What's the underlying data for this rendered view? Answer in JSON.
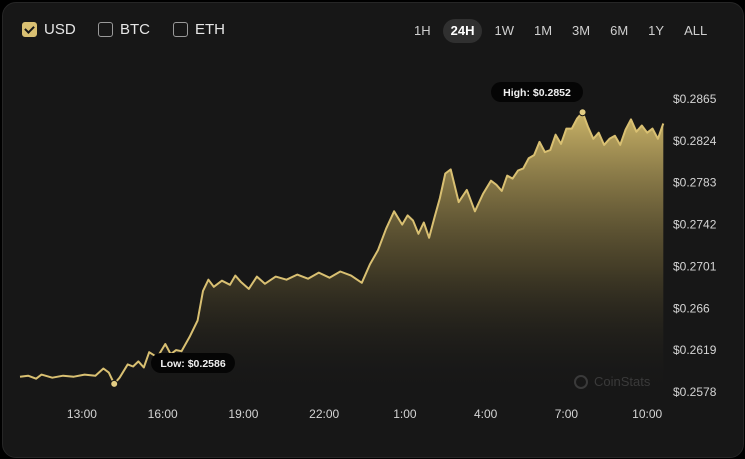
{
  "currencies": [
    {
      "label": "USD",
      "checked": true
    },
    {
      "label": "BTC",
      "checked": false
    },
    {
      "label": "ETH",
      "checked": false
    }
  ],
  "ranges": [
    "1H",
    "24H",
    "1W",
    "1M",
    "3M",
    "6M",
    "1Y",
    "ALL"
  ],
  "selected_range": "24H",
  "watermark": "CoinStats",
  "colors": {
    "line": "#d9c072",
    "fill_top": "#cbb468",
    "background": "#171717"
  },
  "chart_data": {
    "type": "area",
    "y_ticks": [
      "$0.2865",
      "$0.2824",
      "$0.2783",
      "$0.2742",
      "$0.2701",
      "$0.266",
      "$0.2619",
      "$0.2578"
    ],
    "x_ticks": [
      "13:00",
      "16:00",
      "19:00",
      "22:00",
      "1:00",
      "4:00",
      "7:00",
      "10:00"
    ],
    "ylim": [
      0.2578,
      0.2865
    ],
    "annotations": {
      "high": {
        "label": "High: $0.2852",
        "value": 0.2852
      },
      "low": {
        "label": "Low: $0.2586",
        "value": 0.2586
      }
    },
    "x_hours": [
      0,
      0.3,
      0.6,
      0.8,
      1.2,
      1.6,
      2.0,
      2.4,
      2.8,
      3.1,
      3.3,
      3.5,
      3.7,
      4.0,
      4.2,
      4.4,
      4.6,
      4.8,
      5.1,
      5.4,
      5.6,
      5.8,
      6.0,
      6.3,
      6.6,
      6.8,
      7.0,
      7.2,
      7.5,
      7.8,
      8.0,
      8.2,
      8.5,
      8.8,
      9.1,
      9.5,
      9.9,
      10.3,
      10.7,
      11.1,
      11.5,
      11.9,
      12.3,
      12.7,
      13.0,
      13.3,
      13.6,
      13.9,
      14.2,
      14.4,
      14.6,
      14.8,
      15.0,
      15.2,
      15.4,
      15.6,
      15.8,
      16.0,
      16.3,
      16.6,
      16.9,
      17.2,
      17.5,
      17.7,
      17.9,
      18.1,
      18.3,
      18.5,
      18.7,
      18.9,
      19.1,
      19.3,
      19.5,
      19.7,
      19.9,
      20.1,
      20.3,
      20.5,
      20.7,
      20.9,
      21.1,
      21.3,
      21.5,
      21.7,
      21.9,
      22.1,
      22.3,
      22.5,
      22.7,
      22.9,
      23.1,
      23.3,
      23.5,
      23.7,
      23.9
    ],
    "values": [
      0.2593,
      0.2594,
      0.2591,
      0.2595,
      0.2592,
      0.2594,
      0.2593,
      0.2595,
      0.2594,
      0.2601,
      0.2597,
      0.2586,
      0.2592,
      0.2605,
      0.2603,
      0.2608,
      0.2602,
      0.2617,
      0.2612,
      0.2625,
      0.2615,
      0.2619,
      0.2618,
      0.2632,
      0.2648,
      0.2677,
      0.2688,
      0.2681,
      0.2687,
      0.2683,
      0.2692,
      0.2686,
      0.2679,
      0.2691,
      0.2684,
      0.2691,
      0.2688,
      0.2693,
      0.2689,
      0.2695,
      0.269,
      0.2696,
      0.2692,
      0.2685,
      0.2703,
      0.2717,
      0.2738,
      0.2755,
      0.2742,
      0.2751,
      0.2746,
      0.2733,
      0.2744,
      0.2729,
      0.2749,
      0.2768,
      0.2792,
      0.2796,
      0.2764,
      0.2776,
      0.2755,
      0.2772,
      0.2785,
      0.2781,
      0.2775,
      0.279,
      0.2787,
      0.2795,
      0.2797,
      0.2807,
      0.281,
      0.2823,
      0.2813,
      0.2815,
      0.283,
      0.2821,
      0.2836,
      0.2836,
      0.2846,
      0.2852,
      0.2838,
      0.2826,
      0.2832,
      0.282,
      0.2826,
      0.2829,
      0.282,
      0.2835,
      0.2845,
      0.2833,
      0.2839,
      0.2832,
      0.2836,
      0.2826,
      0.2841
    ]
  }
}
